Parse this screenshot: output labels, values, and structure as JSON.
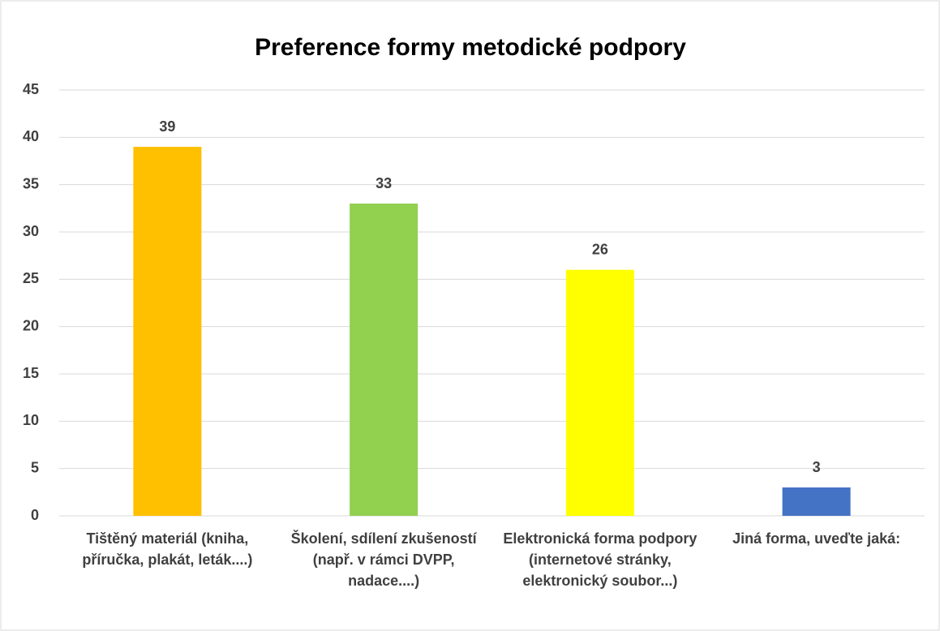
{
  "chart_data": {
    "type": "bar",
    "title": "Preference formy metodické podpory",
    "categories": [
      "Tištěný materiál (kniha, příručka, plakát, leták....)",
      "Školení, sdílení zkušeností (např. v rámci DVPP, nadace....)",
      "Elektronická forma podpory (internetové stránky, elektronický soubor...)",
      "Jiná forma, uveďte jaká:"
    ],
    "values": [
      39,
      33,
      26,
      3
    ],
    "colors": [
      "#ffc000",
      "#92d050",
      "#ffff00",
      "#4472c4"
    ],
    "ylim": [
      0,
      45
    ],
    "yticks": [
      0,
      5,
      10,
      15,
      20,
      25,
      30,
      35,
      40,
      45
    ],
    "grid": true
  }
}
